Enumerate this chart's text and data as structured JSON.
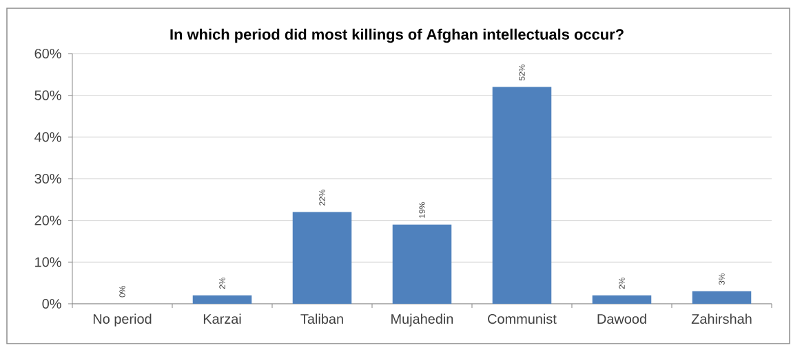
{
  "chart_data": {
    "type": "bar",
    "title": "In which period did most killings of Afghan intellectuals occur?",
    "categories": [
      "No period",
      "Karzai",
      "Taliban",
      "Mujahedin",
      "Communist",
      "Dawood",
      "Zahirshah"
    ],
    "values": [
      0,
      2,
      22,
      19,
      52,
      2,
      3
    ],
    "value_labels": [
      "0%",
      "2%",
      "22%",
      "19%",
      "52%",
      "2%",
      "3%"
    ],
    "color": "#4f81bd",
    "ylim": [
      0,
      60
    ],
    "yticks": [
      {
        "value": 0,
        "label": "0%"
      },
      {
        "value": 10,
        "label": "10%"
      },
      {
        "value": 20,
        "label": "20%"
      },
      {
        "value": 30,
        "label": "30%"
      },
      {
        "value": 40,
        "label": "40%"
      },
      {
        "value": 50,
        "label": "50%"
      },
      {
        "value": 60,
        "label": "60%"
      }
    ],
    "grid": "y"
  }
}
